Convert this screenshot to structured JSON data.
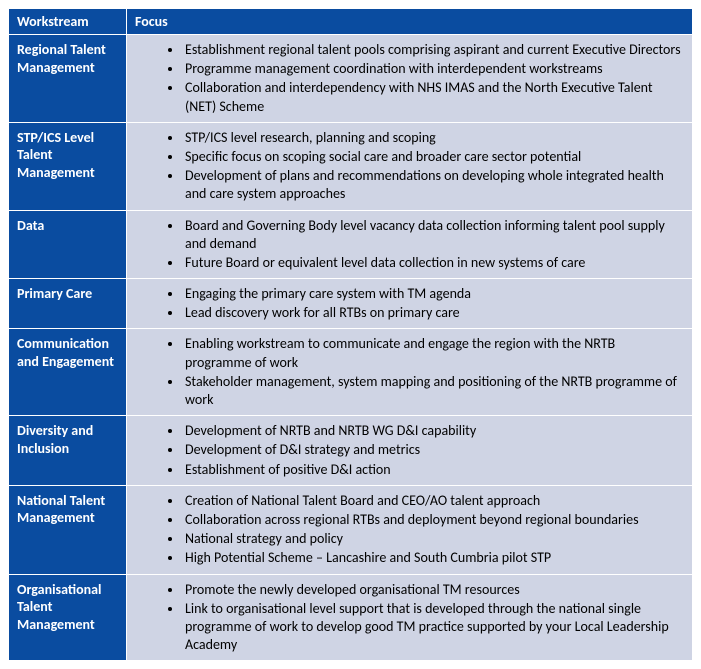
{
  "table": {
    "header": {
      "workstream": "Workstream",
      "focus": "Focus"
    },
    "col_widths": {
      "workstream": 118,
      "focus": 567
    },
    "header_bg": "#0a4ca0",
    "header_fg": "#ffffff",
    "ws_bg": "#0a4ca0",
    "ws_fg": "#ffffff",
    "focus_bg": "#cfd4e4",
    "focus_fg": "#000000",
    "border_color": "#ffffff",
    "font_family": "Calibri",
    "font_size_pt": 11,
    "rows": [
      {
        "workstream": "Regional Talent Management",
        "focus": [
          "Establishment regional talent pools comprising aspirant and current Executive Directors",
          "Programme management coordination with interdependent workstreams",
          "Collaboration and interdependency with NHS IMAS and the North Executive Talent (NET) Scheme"
        ]
      },
      {
        "workstream": "STP/ICS Level Talent Management",
        "focus": [
          "STP/ICS level research, planning and scoping",
          "Specific focus on scoping social care and broader care sector potential",
          "Development of plans and recommendations on developing whole integrated health and care system approaches"
        ]
      },
      {
        "workstream": "Data",
        "focus": [
          "Board and Governing Body level vacancy data collection informing talent pool supply and demand",
          "Future Board or equivalent level data collection in new systems of care"
        ]
      },
      {
        "workstream": "Primary Care",
        "focus": [
          "Engaging the primary care system with TM agenda",
          "Lead discovery work for all RTBs on primary care"
        ]
      },
      {
        "workstream": "Communication and Engagement",
        "focus": [
          "Enabling workstream to communicate and engage the region with the NRTB programme of work",
          "Stakeholder management, system mapping and positioning of the NRTB programme of work"
        ]
      },
      {
        "workstream": "Diversity and Inclusion",
        "focus": [
          "Development of NRTB and NRTB WG D&I capability",
          "Development of D&I strategy and metrics",
          "Establishment of positive D&I action"
        ]
      },
      {
        "workstream": "National Talent Management",
        "focus": [
          "Creation of National Talent Board and CEO/AO talent approach",
          "Collaboration across regional RTBs and deployment beyond regional boundaries",
          "National strategy and policy",
          "High Potential Scheme – Lancashire and South Cumbria pilot STP"
        ]
      },
      {
        "workstream": "Organisational Talent Management",
        "focus": [
          "Promote the newly developed organisational TM resources",
          "Link to organisational level support that is developed through the national single programme of work to develop good TM practice supported by your Local Leadership Academy"
        ]
      }
    ]
  }
}
